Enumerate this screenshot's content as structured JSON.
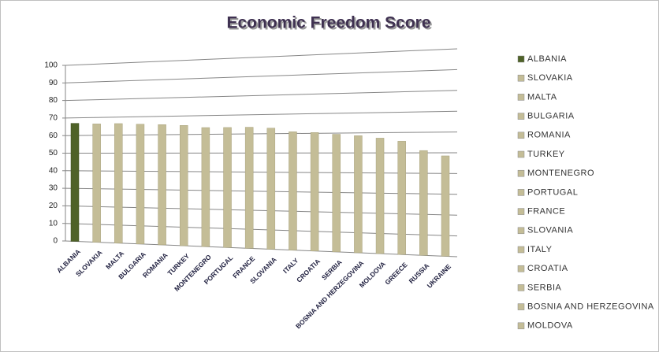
{
  "chart_data": {
    "type": "bar",
    "title": "Economic Freedom Score",
    "categories": [
      "ALBANIA",
      "SLOVAKIA",
      "MALTA",
      "BULGARIA",
      "ROMANIA",
      "TURKEY",
      "MONTENEGRO",
      "PORTUGAL",
      "FRANCE",
      "SLOVANIA",
      "ITALY",
      "CROATIA",
      "SERBIA",
      "BOSNIA AND HERZEGOVINA",
      "MOLDOVA",
      "GREECE",
      "RUSSIA",
      "UKRAINE"
    ],
    "values": [
      66.9,
      66.4,
      66.4,
      65.9,
      65.5,
      64.9,
      63.6,
      63.5,
      63.5,
      62.9,
      60.9,
      60.4,
      59.4,
      58.6,
      57.3,
      55.7,
      51.1,
      48.5
    ],
    "colors": [
      "#4f6228",
      "#c4bd97",
      "#c4bd97",
      "#c4bd97",
      "#c4bd97",
      "#c4bd97",
      "#c4bd97",
      "#c4bd97",
      "#c4bd97",
      "#c4bd97",
      "#c4bd97",
      "#c4bd97",
      "#c4bd97",
      "#c4bd97",
      "#c4bd97",
      "#c4bd97",
      "#c4bd97",
      "#c4bd97"
    ],
    "ylim": [
      0,
      100
    ],
    "yticks": [
      0,
      10,
      20,
      30,
      40,
      50,
      60,
      70,
      80,
      90,
      100
    ],
    "grid": true,
    "legend": "right"
  }
}
